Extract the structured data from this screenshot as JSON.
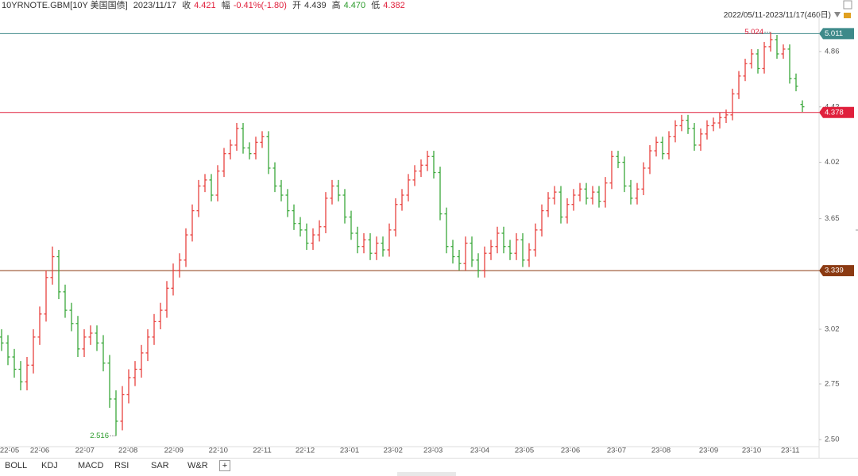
{
  "header": {
    "symbol": "10YRNOTE.GBM[10Y 美国国债]",
    "date": "2023/11/17",
    "close_label": "收",
    "close": "4.421",
    "change_label": "幅",
    "change": "-0.41%(-1.80)",
    "open_label": "开",
    "open": "4.439",
    "high_label": "高",
    "high": "4.470",
    "low_label": "低",
    "low": "4.382",
    "range": "2022/05/11-2023/11/17(460日)"
  },
  "tabs": [
    "BOLL",
    "KDJ",
    "MACD",
    "RSI",
    "SAR",
    "W&R",
    "+"
  ],
  "chart_data": {
    "type": "ohlc",
    "log_y": true,
    "up_color": "#e8413e",
    "down_color": "#3aa83a",
    "xlim": [
      -0.25,
      128.5
    ],
    "ylim": [
      2.47,
      5.18
    ],
    "yticks": [
      {
        "value": 2.5,
        "label": "2.50"
      },
      2.75,
      3.02,
      3.65,
      4.02,
      4.42,
      4.86
    ],
    "xticks": [
      {
        "value": 1.25,
        "label": "22-05"
      },
      {
        "value": 6,
        "label": "22-06"
      },
      {
        "value": 13.1,
        "label": "22-07"
      },
      {
        "value": 19.9,
        "label": "22-08"
      },
      {
        "value": 27.1,
        "label": "22-09"
      },
      {
        "value": 34.1,
        "label": "22-10"
      },
      {
        "value": 41,
        "label": "22-11"
      },
      {
        "value": 47.75,
        "label": "22-12"
      },
      {
        "value": 54.75,
        "label": "23-01"
      },
      {
        "value": 61.6,
        "label": "23-02"
      },
      {
        "value": 67.9,
        "label": "23-03"
      },
      {
        "value": 75.25,
        "label": "23-04"
      },
      {
        "value": 82.25,
        "label": "23-05"
      },
      {
        "value": 89.5,
        "label": "23-06"
      },
      {
        "value": 96.75,
        "label": "23-07"
      },
      {
        "value": 103.75,
        "label": "23-08"
      },
      {
        "value": 111.25,
        "label": "23-09"
      },
      {
        "value": 118,
        "label": "23-10"
      },
      {
        "value": 124.1,
        "label": "23-11"
      }
    ],
    "hlines": [
      {
        "value": 5.011,
        "color": "#3e8a8a"
      },
      {
        "value": 4.378,
        "color": "#e0203c"
      },
      {
        "value": 3.339,
        "color": "#8b3a12"
      }
    ],
    "max_index": 121,
    "min_index": 18,
    "values": [
      [
        2.98,
        3.02,
        2.91,
        2.95
      ],
      [
        2.95,
        2.99,
        2.84,
        2.88
      ],
      [
        2.88,
        2.92,
        2.78,
        2.82
      ],
      [
        2.82,
        2.86,
        2.72,
        2.76
      ],
      [
        2.76,
        2.88,
        2.72,
        2.84
      ],
      [
        2.84,
        3.02,
        2.8,
        2.98
      ],
      [
        2.98,
        3.14,
        2.94,
        3.1
      ],
      [
        3.1,
        3.34,
        3.06,
        3.3
      ],
      [
        3.3,
        3.48,
        3.26,
        3.42
      ],
      [
        3.42,
        3.46,
        3.18,
        3.22
      ],
      [
        3.22,
        3.26,
        3.08,
        3.12
      ],
      [
        3.12,
        3.16,
        3.01,
        3.05
      ],
      [
        3.05,
        3.09,
        2.88,
        2.92
      ],
      [
        2.92,
        3.02,
        2.88,
        2.98
      ],
      [
        2.98,
        3.04,
        2.94,
        3.0
      ],
      [
        3.0,
        3.04,
        2.91,
        2.95
      ],
      [
        2.95,
        2.99,
        2.81,
        2.85
      ],
      [
        2.85,
        2.89,
        2.64,
        2.68
      ],
      [
        2.68,
        2.72,
        2.516,
        2.58
      ],
      [
        2.58,
        2.74,
        2.54,
        2.7
      ],
      [
        2.7,
        2.82,
        2.66,
        2.78
      ],
      [
        2.78,
        2.86,
        2.74,
        2.82
      ],
      [
        2.82,
        2.94,
        2.78,
        2.9
      ],
      [
        2.9,
        3.02,
        2.86,
        2.98
      ],
      [
        2.98,
        3.1,
        2.94,
        3.06
      ],
      [
        3.06,
        3.16,
        3.02,
        3.12
      ],
      [
        3.12,
        3.28,
        3.08,
        3.24
      ],
      [
        3.24,
        3.38,
        3.2,
        3.34
      ],
      [
        3.34,
        3.44,
        3.3,
        3.4
      ],
      [
        3.4,
        3.59,
        3.36,
        3.55
      ],
      [
        3.55,
        3.74,
        3.51,
        3.7
      ],
      [
        3.7,
        3.9,
        3.66,
        3.86
      ],
      [
        3.86,
        3.94,
        3.82,
        3.9
      ],
      [
        3.9,
        3.94,
        3.76,
        3.8
      ],
      [
        3.8,
        4.0,
        3.76,
        3.96
      ],
      [
        3.96,
        4.12,
        3.92,
        4.08
      ],
      [
        4.08,
        4.18,
        4.04,
        4.14
      ],
      [
        4.14,
        4.3,
        4.1,
        4.26
      ],
      [
        4.26,
        4.3,
        4.08,
        4.12
      ],
      [
        4.12,
        4.16,
        4.04,
        4.08
      ],
      [
        4.08,
        4.2,
        4.04,
        4.16
      ],
      [
        4.16,
        4.24,
        4.12,
        4.2
      ],
      [
        4.2,
        4.24,
        3.94,
        3.98
      ],
      [
        3.98,
        4.02,
        3.82,
        3.86
      ],
      [
        3.86,
        3.9,
        3.76,
        3.8
      ],
      [
        3.8,
        3.84,
        3.66,
        3.7
      ],
      [
        3.7,
        3.74,
        3.58,
        3.62
      ],
      [
        3.62,
        3.66,
        3.54,
        3.58
      ],
      [
        3.58,
        3.62,
        3.46,
        3.5
      ],
      [
        3.5,
        3.59,
        3.46,
        3.55
      ],
      [
        3.55,
        3.64,
        3.51,
        3.6
      ],
      [
        3.6,
        3.82,
        3.56,
        3.78
      ],
      [
        3.78,
        3.9,
        3.74,
        3.86
      ],
      [
        3.86,
        3.9,
        3.76,
        3.8
      ],
      [
        3.8,
        3.84,
        3.62,
        3.66
      ],
      [
        3.66,
        3.7,
        3.52,
        3.56
      ],
      [
        3.56,
        3.6,
        3.44,
        3.48
      ],
      [
        3.48,
        3.56,
        3.44,
        3.52
      ],
      [
        3.52,
        3.56,
        3.4,
        3.44
      ],
      [
        3.44,
        3.54,
        3.4,
        3.5
      ],
      [
        3.5,
        3.54,
        3.42,
        3.46
      ],
      [
        3.46,
        3.62,
        3.42,
        3.58
      ],
      [
        3.58,
        3.78,
        3.54,
        3.74
      ],
      [
        3.74,
        3.84,
        3.7,
        3.8
      ],
      [
        3.8,
        3.94,
        3.76,
        3.9
      ],
      [
        3.9,
        4.0,
        3.86,
        3.96
      ],
      [
        3.96,
        4.04,
        3.92,
        4.0
      ],
      [
        4.0,
        4.1,
        3.96,
        4.06
      ],
      [
        4.06,
        4.1,
        3.91,
        3.95
      ],
      [
        3.95,
        3.99,
        3.64,
        3.68
      ],
      [
        3.68,
        3.72,
        3.44,
        3.48
      ],
      [
        3.48,
        3.52,
        3.38,
        3.42
      ],
      [
        3.42,
        3.46,
        3.34,
        3.38
      ],
      [
        3.38,
        3.54,
        3.34,
        3.5
      ],
      [
        3.5,
        3.54,
        3.36,
        3.4
      ],
      [
        3.4,
        3.44,
        3.3,
        3.34
      ],
      [
        3.34,
        3.48,
        3.3,
        3.44
      ],
      [
        3.44,
        3.52,
        3.4,
        3.48
      ],
      [
        3.48,
        3.6,
        3.44,
        3.56
      ],
      [
        3.56,
        3.6,
        3.44,
        3.48
      ],
      [
        3.48,
        3.52,
        3.4,
        3.44
      ],
      [
        3.44,
        3.56,
        3.4,
        3.52
      ],
      [
        3.52,
        3.56,
        3.36,
        3.4
      ],
      [
        3.4,
        3.5,
        3.36,
        3.46
      ],
      [
        3.46,
        3.62,
        3.42,
        3.58
      ],
      [
        3.58,
        3.74,
        3.54,
        3.7
      ],
      [
        3.7,
        3.82,
        3.66,
        3.78
      ],
      [
        3.78,
        3.86,
        3.74,
        3.82
      ],
      [
        3.82,
        3.86,
        3.62,
        3.66
      ],
      [
        3.66,
        3.78,
        3.62,
        3.74
      ],
      [
        3.74,
        3.84,
        3.7,
        3.8
      ],
      [
        3.8,
        3.88,
        3.76,
        3.84
      ],
      [
        3.84,
        3.88,
        3.74,
        3.78
      ],
      [
        3.78,
        3.86,
        3.74,
        3.82
      ],
      [
        3.82,
        3.86,
        3.72,
        3.76
      ],
      [
        3.76,
        3.92,
        3.72,
        3.88
      ],
      [
        3.88,
        4.1,
        3.84,
        4.06
      ],
      [
        4.06,
        4.1,
        3.98,
        4.02
      ],
      [
        4.02,
        4.06,
        3.82,
        3.86
      ],
      [
        3.86,
        3.9,
        3.74,
        3.78
      ],
      [
        3.78,
        3.88,
        3.74,
        3.84
      ],
      [
        3.84,
        4.02,
        3.8,
        3.98
      ],
      [
        3.98,
        4.14,
        3.94,
        4.1
      ],
      [
        4.1,
        4.2,
        4.06,
        4.16
      ],
      [
        4.16,
        4.2,
        4.04,
        4.08
      ],
      [
        4.08,
        4.24,
        4.04,
        4.2
      ],
      [
        4.2,
        4.32,
        4.16,
        4.28
      ],
      [
        4.28,
        4.36,
        4.24,
        4.32
      ],
      [
        4.32,
        4.36,
        4.22,
        4.26
      ],
      [
        4.26,
        4.3,
        4.1,
        4.14
      ],
      [
        4.14,
        4.26,
        4.1,
        4.22
      ],
      [
        4.22,
        4.32,
        4.18,
        4.28
      ],
      [
        4.28,
        4.34,
        4.24,
        4.3
      ],
      [
        4.3,
        4.38,
        4.26,
        4.34
      ],
      [
        4.34,
        4.4,
        4.3,
        4.36
      ],
      [
        4.36,
        4.56,
        4.32,
        4.52
      ],
      [
        4.52,
        4.7,
        4.48,
        4.66
      ],
      [
        4.66,
        4.8,
        4.62,
        4.76
      ],
      [
        4.76,
        4.88,
        4.72,
        4.84
      ],
      [
        4.84,
        4.88,
        4.68,
        4.72
      ],
      [
        4.72,
        4.94,
        4.68,
        4.9
      ],
      [
        4.9,
        5.024,
        4.86,
        4.96
      ],
      [
        4.96,
        5.0,
        4.8,
        4.84
      ],
      [
        4.84,
        4.92,
        4.8,
        4.88
      ],
      [
        4.88,
        4.92,
        4.6,
        4.64
      ],
      [
        4.64,
        4.68,
        4.54,
        4.58
      ],
      [
        4.439,
        4.47,
        4.382,
        4.421
      ]
    ]
  }
}
